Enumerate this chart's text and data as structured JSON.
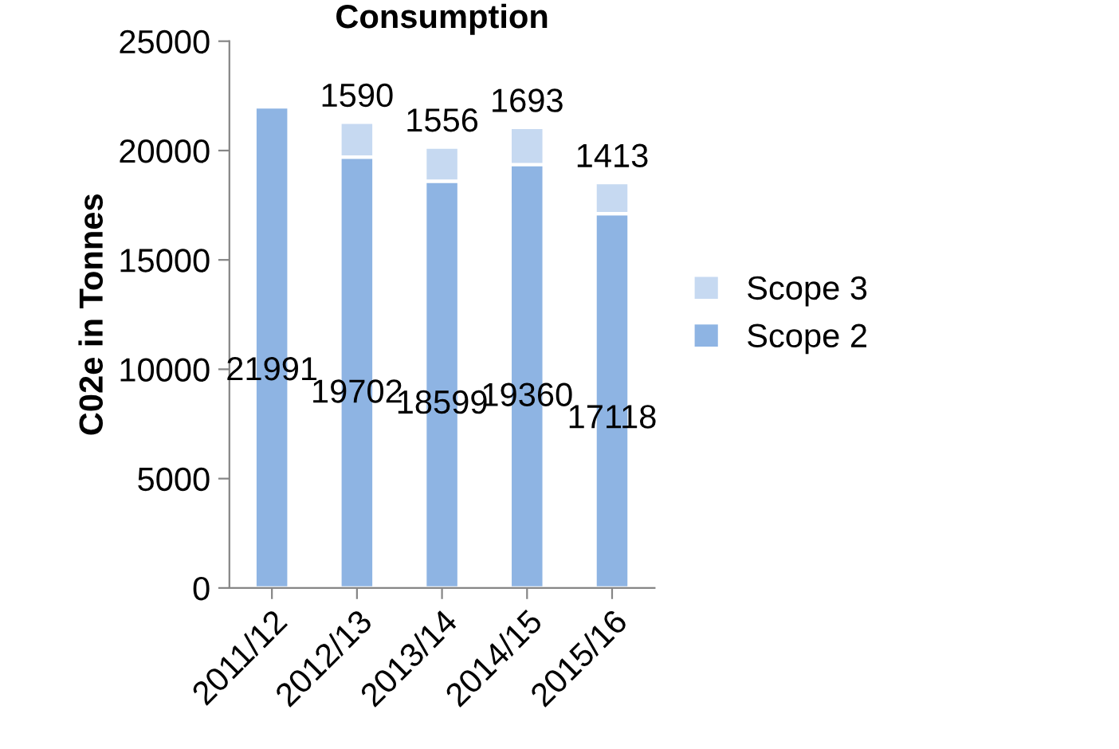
{
  "chart_data": {
    "type": "bar",
    "title": "Consumption",
    "ylabel": "C02e in Tonnes",
    "categories": [
      "2011/12",
      "2012/13",
      "2013/14",
      "2014/15",
      "2015/16"
    ],
    "stacked": true,
    "series": [
      {
        "name": "Scope 2",
        "color": "#8eb4e3",
        "values": [
          21991,
          19702,
          18599,
          19360,
          17118
        ]
      },
      {
        "name": "Scope 3",
        "color": "#c6d9f1",
        "values": [
          null,
          1590,
          1556,
          1693,
          1413
        ]
      }
    ],
    "ylim": [
      0,
      25000
    ],
    "yticks": [
      0,
      5000,
      10000,
      15000,
      20000,
      25000
    ],
    "data_labels": true,
    "grid": false,
    "legend": "right"
  }
}
